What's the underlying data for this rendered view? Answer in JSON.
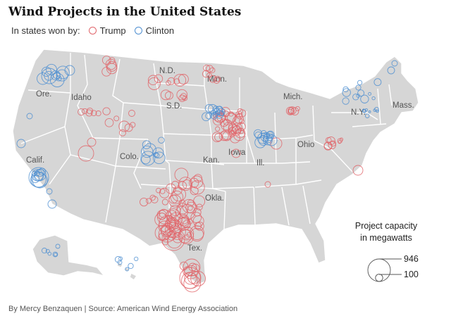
{
  "title": "Wind Projects in the United States",
  "legend": {
    "intro": "In states won by:",
    "trump": {
      "label": "Trump",
      "color": "#e0656a"
    },
    "clinton": {
      "label": "Clinton",
      "color": "#4f8fd1"
    }
  },
  "size_legend": {
    "title_line1": "Project capacity",
    "title_line2": "in megawatts",
    "large_label": "946",
    "small_label": "100",
    "large_mw": 946,
    "small_mw": 100
  },
  "state_labels": [
    "N.D.",
    "Minn.",
    "S.D.",
    "Mich.",
    "Ore.",
    "Idaho",
    "N.Y.",
    "Mass.",
    "Colo.",
    "Iowa",
    "Ohio",
    "Calif.",
    "Kan.",
    "Ill.",
    "Okla.",
    "Tex."
  ],
  "credit": "By Mercy Benzaquen | Source: American Wind Energy Association"
}
